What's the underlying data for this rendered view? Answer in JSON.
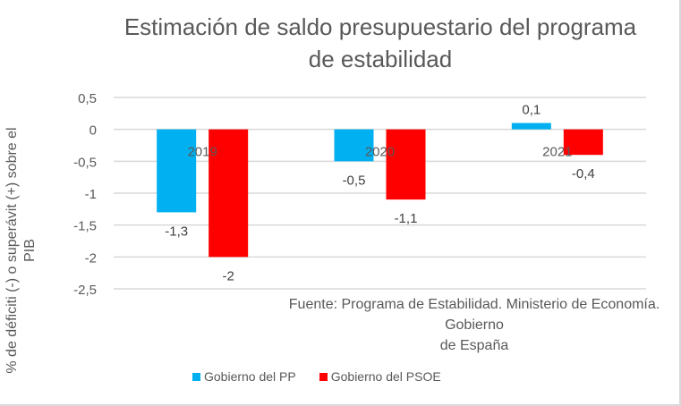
{
  "chart_data": {
    "type": "bar",
    "title": "Estimación de saldo presupuestario del programa de estabilidad",
    "title_lines": [
      "Estimación de saldo presupuestario del programa",
      "de estabilidad"
    ],
    "xlabel": "Fuente: Programa de Estabilidad. Ministerio de Economía. Gobierno de España",
    "xlabel_lines": [
      "Fuente: Programa de Estabilidad. Ministerio de Economía. Gobierno",
      "de España"
    ],
    "ylabel": "% de déficiti (-) o superávit (+) sobre el PIB",
    "ylabel_lines": [
      "% de déficiti (-) o superávit (+) sobre el",
      "PIB"
    ],
    "categories": [
      "2019",
      "2020",
      "2021"
    ],
    "series": [
      {
        "name": "Gobierno del PP",
        "color": "#00b0f0",
        "values": [
          -1.3,
          -0.5,
          0.1
        ],
        "labels": [
          "-1,3",
          "-0,5",
          "0,1"
        ]
      },
      {
        "name": "Gobierno del PSOE",
        "color": "#ff0000",
        "values": [
          -2,
          -1.1,
          -0.4
        ],
        "labels": [
          "-2",
          "-1,1",
          "-0,4"
        ]
      }
    ],
    "ylim": [
      -2.5,
      0.5
    ],
    "yticks": [
      0.5,
      0,
      -0.5,
      -1,
      -1.5,
      -2,
      -2.5
    ],
    "ytick_labels": [
      "0,5",
      "0",
      "-0,5",
      "-1",
      "-1,5",
      "-2",
      "-2,5"
    ],
    "grid": true,
    "legend_position": "bottom"
  }
}
